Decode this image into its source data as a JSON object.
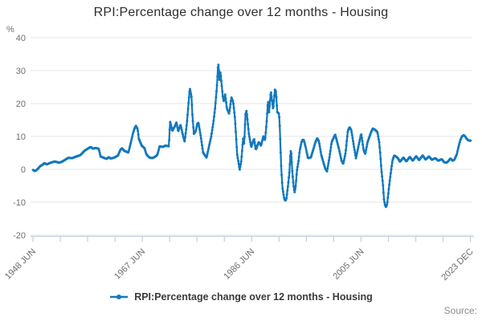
{
  "page": {
    "source_label": "Source:"
  },
  "chart_data": {
    "type": "line",
    "title": "RPI:Percentage change over 12 months - Housing",
    "unit_label": "%",
    "xlabel": "",
    "ylabel": "%",
    "grid": "horizontal",
    "legend_position": "bottom",
    "line_color": "#1278be",
    "grid_color": "#e4e4e4",
    "axis_color": "#c3cfdf",
    "y_ticks": [
      -20,
      -10,
      0,
      10,
      20,
      30,
      40
    ],
    "ylim": [
      -20,
      40
    ],
    "x_tick_labels": [
      "1948 JUN",
      "1967 JUN",
      "1986 JUN",
      "2005 JUN",
      "2023 DEC"
    ],
    "x_range_years": [
      1948.42,
      2023.96
    ],
    "minor_x_ticks": 17,
    "series": [
      {
        "name": "RPI:Percentage change over 12 months - Housing",
        "points": [
          [
            1948.45,
            -0.2
          ],
          [
            1948.7,
            -0.5
          ],
          [
            1949.0,
            -0.3
          ],
          [
            1949.4,
            0.4
          ],
          [
            1949.7,
            1.0
          ],
          [
            1950.1,
            1.4
          ],
          [
            1950.4,
            1.9
          ],
          [
            1950.8,
            1.5
          ],
          [
            1951.2,
            1.8
          ],
          [
            1951.5,
            2.0
          ],
          [
            1952.2,
            2.4
          ],
          [
            1952.9,
            2.0
          ],
          [
            1953.4,
            2.3
          ],
          [
            1953.8,
            2.7
          ],
          [
            1954.5,
            3.5
          ],
          [
            1955.2,
            3.4
          ],
          [
            1955.9,
            3.9
          ],
          [
            1956.6,
            4.3
          ],
          [
            1957.3,
            5.6
          ],
          [
            1958.0,
            6.4
          ],
          [
            1958.4,
            6.8
          ],
          [
            1958.8,
            6.3
          ],
          [
            1959.3,
            6.5
          ],
          [
            1959.8,
            6.2
          ],
          [
            1960.1,
            3.9
          ],
          [
            1960.8,
            3.4
          ],
          [
            1961.2,
            3.2
          ],
          [
            1961.5,
            3.7
          ],
          [
            1961.8,
            3.3
          ],
          [
            1962.4,
            3.5
          ],
          [
            1963.1,
            4.2
          ],
          [
            1963.5,
            5.9
          ],
          [
            1963.8,
            6.4
          ],
          [
            1964.2,
            5.6
          ],
          [
            1964.9,
            5.1
          ],
          [
            1965.3,
            8.0
          ],
          [
            1965.7,
            11.0
          ],
          [
            1966.0,
            12.6
          ],
          [
            1966.2,
            13.2
          ],
          [
            1966.5,
            12.2
          ],
          [
            1966.7,
            9.3
          ],
          [
            1967.2,
            7.2
          ],
          [
            1967.7,
            6.4
          ],
          [
            1968.0,
            4.6
          ],
          [
            1968.5,
            3.6
          ],
          [
            1969.0,
            3.4
          ],
          [
            1969.5,
            3.8
          ],
          [
            1969.9,
            4.4
          ],
          [
            1970.3,
            7.0
          ],
          [
            1970.8,
            6.8
          ],
          [
            1971.3,
            7.2
          ],
          [
            1971.9,
            7.0
          ],
          [
            1972.1,
            14.5
          ],
          [
            1972.5,
            11.7
          ],
          [
            1972.9,
            13.0
          ],
          [
            1973.2,
            14.2
          ],
          [
            1973.5,
            11.5
          ],
          [
            1973.9,
            13.6
          ],
          [
            1974.2,
            11.2
          ],
          [
            1974.6,
            8.3
          ],
          [
            1975.0,
            14.0
          ],
          [
            1975.3,
            20.5
          ],
          [
            1975.5,
            24.7
          ],
          [
            1975.8,
            22.0
          ],
          [
            1975.95,
            16.6
          ],
          [
            1976.2,
            10.8
          ],
          [
            1976.5,
            11.5
          ],
          [
            1976.8,
            13.8
          ],
          [
            1977.0,
            14.2
          ],
          [
            1977.4,
            10.0
          ],
          [
            1977.8,
            5.1
          ],
          [
            1978.4,
            3.5
          ],
          [
            1978.8,
            6.8
          ],
          [
            1979.2,
            10.0
          ],
          [
            1979.6,
            14.5
          ],
          [
            1979.9,
            19.0
          ],
          [
            1980.2,
            25.5
          ],
          [
            1980.4,
            32.0
          ],
          [
            1980.5,
            31.5
          ],
          [
            1980.6,
            27.0
          ],
          [
            1980.8,
            29.6
          ],
          [
            1981.2,
            22.2
          ],
          [
            1981.4,
            20.5
          ],
          [
            1981.6,
            23.0
          ],
          [
            1981.9,
            18.6
          ],
          [
            1982.3,
            16.9
          ],
          [
            1982.7,
            21.8
          ],
          [
            1983.0,
            20.5
          ],
          [
            1983.3,
            15.7
          ],
          [
            1983.5,
            10.0
          ],
          [
            1983.7,
            4.4
          ],
          [
            1984.0,
            1.1
          ],
          [
            1984.1,
            -0.2
          ],
          [
            1984.4,
            2.7
          ],
          [
            1984.7,
            9.3
          ],
          [
            1984.9,
            7.6
          ],
          [
            1985.1,
            16.6
          ],
          [
            1985.3,
            17.8
          ],
          [
            1985.7,
            10.8
          ],
          [
            1986.1,
            6.8
          ],
          [
            1986.6,
            9.3
          ],
          [
            1986.9,
            5.9
          ],
          [
            1987.4,
            8.3
          ],
          [
            1987.8,
            7.2
          ],
          [
            1988.2,
            10.0
          ],
          [
            1988.5,
            8.8
          ],
          [
            1988.8,
            14.9
          ],
          [
            1989.0,
            21.0
          ],
          [
            1989.2,
            17.4
          ],
          [
            1989.5,
            23.8
          ],
          [
            1989.9,
            18.1
          ],
          [
            1990.2,
            24.2
          ],
          [
            1990.4,
            23.5
          ],
          [
            1990.6,
            17.4
          ],
          [
            1990.9,
            16.9
          ],
          [
            1991.0,
            14.9
          ],
          [
            1991.3,
            0.2
          ],
          [
            1991.5,
            -5.5
          ],
          [
            1991.8,
            -8.8
          ],
          [
            1992.0,
            -9.6
          ],
          [
            1992.2,
            -8.8
          ],
          [
            1992.5,
            -4.5
          ],
          [
            1992.7,
            -1.0
          ],
          [
            1992.9,
            5.1
          ],
          [
            1993.0,
            5.9
          ],
          [
            1993.2,
            -0.5
          ],
          [
            1993.4,
            -4.6
          ],
          [
            1993.6,
            -7.1
          ],
          [
            1993.8,
            -5.0
          ],
          [
            1994.0,
            -0.5
          ],
          [
            1994.3,
            2.7
          ],
          [
            1994.5,
            5.9
          ],
          [
            1994.8,
            8.3
          ],
          [
            1995.0,
            9.0
          ],
          [
            1995.2,
            8.8
          ],
          [
            1995.5,
            6.8
          ],
          [
            1995.7,
            5.1
          ],
          [
            1995.9,
            3.4
          ],
          [
            1996.4,
            3.6
          ],
          [
            1996.8,
            5.9
          ],
          [
            1997.2,
            8.3
          ],
          [
            1997.5,
            9.5
          ],
          [
            1997.8,
            8.5
          ],
          [
            1998.2,
            4.4
          ],
          [
            1998.6,
            1.9
          ],
          [
            1998.9,
            0.2
          ],
          [
            1999.2,
            -0.6
          ],
          [
            1999.6,
            3.4
          ],
          [
            2000.0,
            8.3
          ],
          [
            2000.4,
            9.8
          ],
          [
            2000.6,
            10.6
          ],
          [
            2001.0,
            8.0
          ],
          [
            2001.3,
            5.9
          ],
          [
            2001.7,
            2.7
          ],
          [
            2002.0,
            1.6
          ],
          [
            2002.4,
            5.0
          ],
          [
            2002.8,
            11.7
          ],
          [
            2003.1,
            12.8
          ],
          [
            2003.4,
            11.9
          ],
          [
            2003.8,
            7.5
          ],
          [
            2004.2,
            3.4
          ],
          [
            2004.7,
            7.6
          ],
          [
            2005.1,
            10.8
          ],
          [
            2005.5,
            5.9
          ],
          [
            2005.8,
            4.7
          ],
          [
            2006.2,
            8.3
          ],
          [
            2006.8,
            11.3
          ],
          [
            2007.1,
            12.4
          ],
          [
            2007.5,
            12.0
          ],
          [
            2007.9,
            11.3
          ],
          [
            2008.2,
            8.3
          ],
          [
            2008.4,
            4.4
          ],
          [
            2008.6,
            -0.5
          ],
          [
            2008.9,
            -5.4
          ],
          [
            2009.0,
            -8.8
          ],
          [
            2009.2,
            -10.8
          ],
          [
            2009.4,
            -11.5
          ],
          [
            2009.6,
            -10.3
          ],
          [
            2009.75,
            -7.8
          ],
          [
            2010.0,
            -3.9
          ],
          [
            2010.3,
            0.2
          ],
          [
            2010.5,
            2.7
          ],
          [
            2010.8,
            4.2
          ],
          [
            2011.0,
            4.0
          ],
          [
            2011.4,
            3.5
          ],
          [
            2011.8,
            2.3
          ],
          [
            2012.4,
            3.6
          ],
          [
            2012.9,
            2.4
          ],
          [
            2013.5,
            3.8
          ],
          [
            2014.0,
            2.6
          ],
          [
            2014.6,
            4.0
          ],
          [
            2015.1,
            2.8
          ],
          [
            2015.7,
            4.2
          ],
          [
            2016.2,
            3.0
          ],
          [
            2016.8,
            3.9
          ],
          [
            2017.3,
            2.9
          ],
          [
            2017.9,
            3.4
          ],
          [
            2018.4,
            2.6
          ],
          [
            2019.0,
            3.1
          ],
          [
            2019.4,
            2.2
          ],
          [
            2019.8,
            2.0
          ],
          [
            2020.1,
            2.4
          ],
          [
            2020.5,
            3.3
          ],
          [
            2020.9,
            2.6
          ],
          [
            2021.2,
            3.0
          ],
          [
            2021.6,
            4.5
          ],
          [
            2021.9,
            6.8
          ],
          [
            2022.2,
            8.8
          ],
          [
            2022.5,
            10.0
          ],
          [
            2022.8,
            10.4
          ],
          [
            2023.1,
            9.9
          ],
          [
            2023.3,
            9.3
          ],
          [
            2023.6,
            8.8
          ],
          [
            2023.96,
            8.7
          ]
        ]
      }
    ]
  }
}
